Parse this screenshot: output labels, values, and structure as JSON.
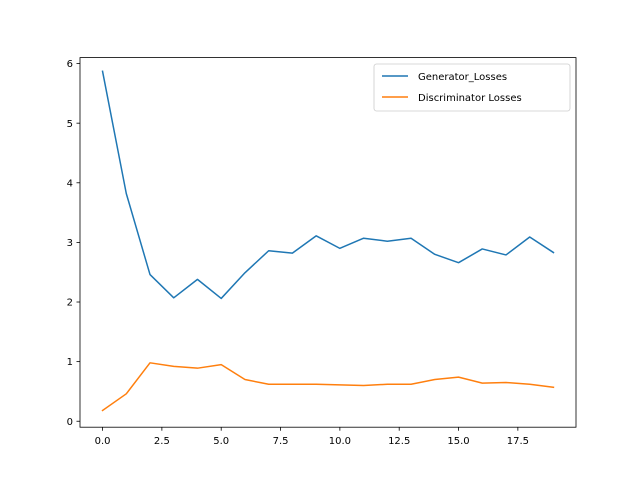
{
  "chart_data": {
    "type": "line",
    "title": "",
    "xlabel": "",
    "ylabel": "",
    "xlim": [
      -0.95,
      19.95
    ],
    "ylim": [
      -0.1,
      6.1
    ],
    "grid": false,
    "legend_position": "top-right",
    "x": [
      0,
      1,
      2,
      3,
      4,
      5,
      6,
      7,
      8,
      9,
      10,
      11,
      12,
      13,
      14,
      15,
      16,
      17,
      18,
      19
    ],
    "x_ticks": [
      0,
      2.5,
      5,
      7.5,
      10,
      12.5,
      15,
      17.5
    ],
    "x_tick_labels": [
      "0.0",
      "2.5",
      "5.0",
      "7.5",
      "10.0",
      "12.5",
      "15.0",
      "17.5"
    ],
    "y_ticks": [
      0,
      1,
      2,
      3,
      4,
      5,
      6
    ],
    "y_tick_labels": [
      "0",
      "1",
      "2",
      "3",
      "4",
      "5",
      "6"
    ],
    "series": [
      {
        "name": "Generator_Losses",
        "color": "#1f77b4",
        "values": [
          5.87,
          3.82,
          2.46,
          2.07,
          2.38,
          2.06,
          2.49,
          2.86,
          2.82,
          3.11,
          2.9,
          3.07,
          3.02,
          3.07,
          2.8,
          2.66,
          2.89,
          2.79,
          3.09,
          2.83
        ]
      },
      {
        "name": "Discriminator Losses",
        "color": "#ff7f0e",
        "values": [
          0.18,
          0.46,
          0.98,
          0.92,
          0.89,
          0.95,
          0.7,
          0.62,
          0.62,
          0.62,
          0.61,
          0.6,
          0.62,
          0.62,
          0.7,
          0.74,
          0.64,
          0.65,
          0.62,
          0.57
        ]
      }
    ]
  }
}
